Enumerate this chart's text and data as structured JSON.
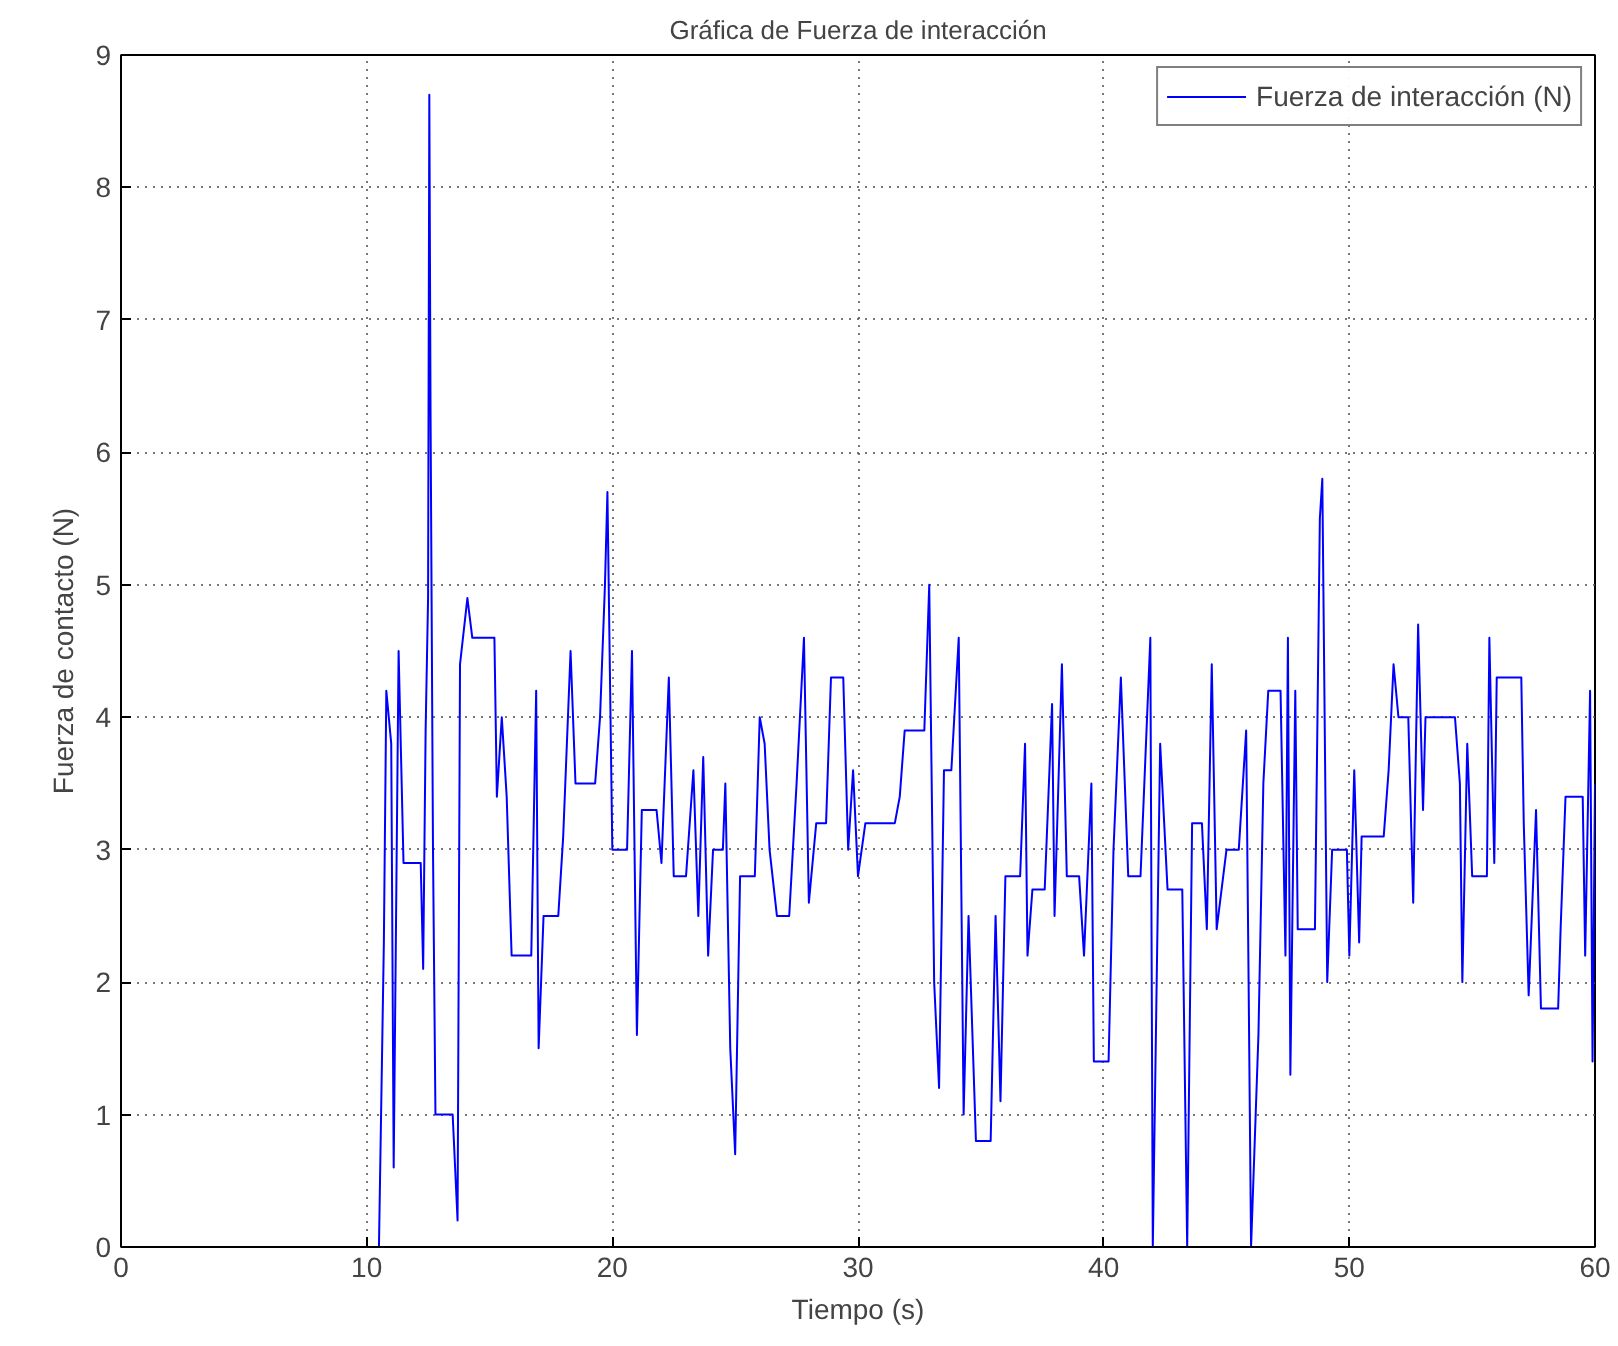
{
  "chart_data": {
    "type": "line",
    "title": "Gráfica de Fuerza de interacción",
    "xlabel": "Tiempo (s)",
    "ylabel": "Fuerza de contacto (N)",
    "xlim": [
      0,
      60
    ],
    "ylim": [
      0,
      9
    ],
    "xticks": [
      0,
      10,
      20,
      30,
      40,
      50,
      60
    ],
    "yticks": [
      0,
      1,
      2,
      3,
      4,
      5,
      6,
      7,
      8,
      9
    ],
    "grid": true,
    "legend": "top right",
    "line_style": "solid",
    "series": [
      {
        "name": "Fuerza de interacción (N)",
        "color": "#0000ff",
        "x": [
          10.5,
          10.7,
          10.8,
          11.0,
          11.1,
          11.3,
          11.5,
          12.2,
          12.3,
          12.4,
          12.5,
          12.55,
          12.6,
          12.7,
          12.8,
          13.5,
          13.7,
          13.8,
          14.1,
          14.3,
          15.2,
          15.3,
          15.5,
          15.7,
          15.9,
          16.7,
          16.9,
          17.0,
          17.2,
          17.8,
          18.0,
          18.3,
          18.5,
          19.3,
          19.5,
          19.7,
          19.8,
          20.0,
          20.6,
          20.8,
          21.0,
          21.2,
          21.8,
          22.0,
          22.3,
          22.5,
          23.0,
          23.3,
          23.5,
          23.7,
          23.9,
          24.1,
          24.5,
          24.6,
          24.8,
          25.0,
          25.2,
          25.8,
          26.0,
          26.2,
          26.4,
          26.7,
          27.2,
          27.5,
          27.8,
          28.0,
          28.3,
          28.7,
          28.9,
          29.4,
          29.6,
          29.8,
          30.0,
          30.3,
          31.5,
          31.7,
          31.9,
          32.7,
          32.9,
          33.1,
          33.3,
          33.5,
          33.8,
          34.1,
          34.3,
          34.5,
          34.8,
          35.4,
          35.6,
          35.8,
          36.0,
          36.6,
          36.8,
          36.9,
          37.1,
          37.6,
          37.9,
          38.0,
          38.3,
          38.5,
          39.0,
          39.2,
          39.5,
          39.6,
          40.2,
          40.4,
          40.7,
          41.0,
          41.5,
          41.9,
          42.0,
          42.3,
          42.6,
          43.2,
          43.4,
          43.6,
          44.0,
          44.2,
          44.4,
          44.6,
          45.0,
          45.5,
          45.8,
          45.9,
          46.0,
          46.3,
          46.5,
          46.7,
          47.2,
          47.4,
          47.5,
          47.6,
          47.8,
          47.9,
          48.6,
          48.8,
          48.9,
          49.1,
          49.3,
          49.9,
          50.0,
          50.2,
          50.4,
          50.5,
          51.4,
          51.6,
          51.8,
          52.0,
          52.4,
          52.6,
          52.8,
          53.0,
          53.1,
          54.3,
          54.5,
          54.6,
          54.8,
          55.0,
          55.6,
          55.7,
          55.9,
          56.0,
          57.0,
          57.1,
          57.3,
          57.6,
          57.8,
          58.5,
          58.6,
          58.8,
          59.5,
          59.6,
          59.8,
          59.9,
          60.0
        ],
        "values": [
          0,
          2.3,
          4.2,
          3.8,
          0.6,
          4.5,
          2.9,
          2.9,
          2.1,
          3.9,
          4.9,
          8.7,
          6.3,
          3.0,
          1.0,
          1.0,
          0.2,
          4.4,
          4.9,
          4.6,
          4.6,
          3.4,
          4.0,
          3.4,
          2.2,
          2.2,
          4.2,
          1.5,
          2.5,
          2.5,
          3.1,
          4.5,
          3.5,
          3.5,
          4.0,
          5.0,
          5.7,
          3.0,
          3.0,
          4.5,
          1.6,
          3.3,
          3.3,
          2.9,
          4.3,
          2.8,
          2.8,
          3.6,
          2.5,
          3.7,
          2.2,
          3.0,
          3.0,
          3.5,
          1.5,
          0.7,
          2.8,
          2.8,
          4.0,
          3.8,
          3.0,
          2.5,
          2.5,
          3.5,
          4.6,
          2.6,
          3.2,
          3.2,
          4.3,
          4.3,
          3.0,
          3.6,
          2.8,
          3.2,
          3.2,
          3.4,
          3.9,
          3.9,
          5.0,
          2.0,
          1.2,
          3.6,
          3.6,
          4.6,
          1.0,
          2.5,
          0.8,
          0.8,
          2.5,
          1.1,
          2.8,
          2.8,
          3.8,
          2.2,
          2.7,
          2.7,
          4.1,
          2.5,
          4.4,
          2.8,
          2.8,
          2.2,
          3.5,
          1.4,
          1.4,
          3.0,
          4.3,
          2.8,
          2.8,
          4.6,
          0,
          3.8,
          2.7,
          2.7,
          0,
          3.2,
          3.2,
          2.4,
          4.4,
          2.4,
          3.0,
          3.0,
          3.9,
          2.0,
          0,
          1.6,
          3.5,
          4.2,
          4.2,
          2.2,
          4.6,
          1.3,
          4.2,
          2.4,
          2.4,
          5.5,
          5.8,
          2.0,
          3.0,
          3.0,
          2.2,
          3.6,
          2.3,
          3.1,
          3.1,
          3.6,
          4.4,
          4.0,
          4.0,
          2.6,
          4.7,
          3.3,
          4.0,
          4.0,
          3.5,
          2.0,
          3.8,
          2.8,
          2.8,
          4.6,
          2.9,
          4.3,
          4.3,
          3.2,
          1.9,
          3.3,
          1.8,
          1.8,
          2.4,
          3.4,
          3.4,
          2.2,
          4.2,
          1.4,
          3.5
        ]
      }
    ]
  }
}
